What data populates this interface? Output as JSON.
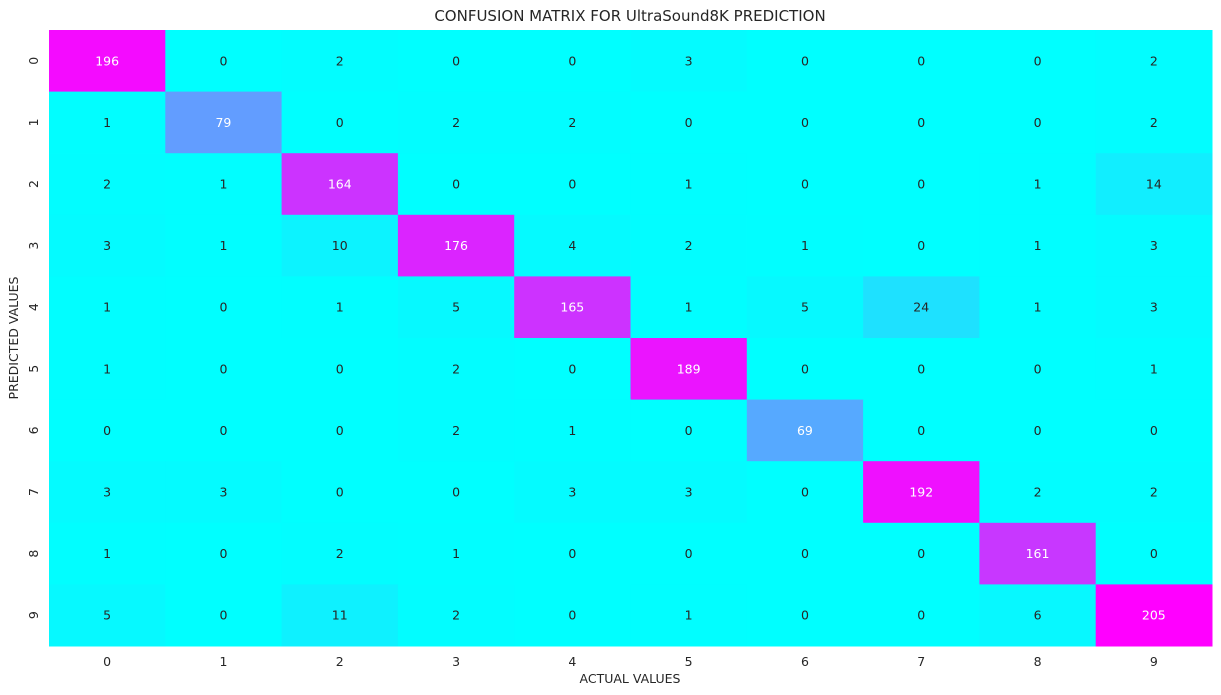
{
  "chart_data": {
    "type": "heatmap",
    "title": "CONFUSION MATRIX FOR UltraSound8K PREDICTION",
    "xlabel": "ACTUAL VALUES",
    "ylabel": "PREDICTED VALUES",
    "x_categories": [
      "0",
      "1",
      "2",
      "3",
      "4",
      "5",
      "6",
      "7",
      "8",
      "9"
    ],
    "y_categories": [
      "0",
      "1",
      "2",
      "3",
      "4",
      "5",
      "6",
      "7",
      "8",
      "9"
    ],
    "values": [
      [
        196,
        0,
        2,
        0,
        0,
        3,
        0,
        0,
        0,
        2
      ],
      [
        1,
        79,
        0,
        2,
        2,
        0,
        0,
        0,
        0,
        2
      ],
      [
        2,
        1,
        164,
        0,
        0,
        1,
        0,
        0,
        1,
        14
      ],
      [
        3,
        1,
        10,
        176,
        4,
        2,
        1,
        0,
        1,
        3
      ],
      [
        1,
        0,
        1,
        5,
        165,
        1,
        5,
        24,
        1,
        3
      ],
      [
        1,
        0,
        0,
        2,
        0,
        189,
        0,
        0,
        0,
        1
      ],
      [
        0,
        0,
        0,
        2,
        1,
        0,
        69,
        0,
        0,
        0
      ],
      [
        3,
        3,
        0,
        0,
        3,
        3,
        0,
        192,
        2,
        2
      ],
      [
        1,
        0,
        2,
        1,
        0,
        0,
        0,
        0,
        161,
        0
      ],
      [
        5,
        0,
        11,
        2,
        0,
        1,
        0,
        0,
        6,
        205
      ]
    ],
    "colormap": "cool",
    "value_range": [
      0,
      205
    ],
    "colorbar": false,
    "grid": false,
    "annotated": true,
    "colors": {
      "low": "#00ffff",
      "high": "#ff00ff",
      "text_dark": "#262626",
      "text_light": "#ffffff"
    }
  }
}
